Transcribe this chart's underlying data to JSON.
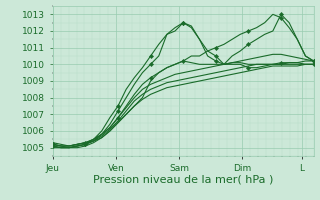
{
  "background_color": "#cce8d8",
  "plot_bg_color": "#cce8d8",
  "grid_major_color": "#99ccb0",
  "grid_minor_color": "#b8ddc8",
  "line_color": "#1a6b2a",
  "ylim": [
    1004.5,
    1013.5
  ],
  "yticks": [
    1005,
    1006,
    1007,
    1008,
    1009,
    1010,
    1011,
    1012,
    1013
  ],
  "xlabel": "Pression niveau de la mer( hPa )",
  "xlabel_fontsize": 8,
  "tick_fontsize": 6.5,
  "day_labels": [
    "Jeu",
    "Ven",
    "Sam",
    "Dim",
    "L"
  ],
  "day_positions": [
    0,
    32,
    64,
    96,
    126
  ],
  "xlim": [
    0,
    132
  ],
  "series": [
    {
      "y": [
        1005.2,
        1005.1,
        1005.1,
        1005.2,
        1005.3,
        1005.4,
        1005.6,
        1006.0,
        1006.5,
        1007.0,
        1007.5,
        1008.0,
        1009.0,
        1009.5,
        1009.8,
        1010.0,
        1010.2,
        1010.1,
        1010.0,
        1010.0,
        1010.0,
        1010.0,
        1010.1,
        1010.1,
        1010.0,
        1010.0,
        1010.0,
        1010.0,
        1010.0,
        1010.1,
        1010.1,
        1010.2,
        1010.2
      ],
      "markers": false
    },
    {
      "y": [
        1005.2,
        1005.1,
        1005.0,
        1005.1,
        1005.2,
        1005.4,
        1005.8,
        1006.4,
        1007.2,
        1008.0,
        1008.8,
        1009.5,
        1010.0,
        1010.5,
        1011.8,
        1012.2,
        1012.5,
        1012.3,
        1011.5,
        1010.8,
        1010.5,
        1010.0,
        1010.0,
        1010.0,
        1009.8,
        1009.8,
        1009.9,
        1010.0,
        1010.1,
        1010.1,
        1010.1,
        1010.0,
        1010.0
      ],
      "markers": true
    },
    {
      "y": [
        1005.1,
        1005.0,
        1005.0,
        1005.1,
        1005.2,
        1005.5,
        1006.0,
        1006.8,
        1007.5,
        1008.5,
        1009.2,
        1009.8,
        1010.5,
        1011.2,
        1011.8,
        1012.0,
        1012.5,
        1012.2,
        1011.5,
        1010.5,
        1010.2,
        1010.0,
        1010.5,
        1010.8,
        1011.2,
        1011.5,
        1011.8,
        1012.0,
        1013.0,
        1012.5,
        1011.5,
        1010.5,
        1010.2
      ],
      "markers": true
    },
    {
      "y": [
        1005.2,
        1005.1,
        1005.1,
        1005.2,
        1005.3,
        1005.5,
        1005.8,
        1006.2,
        1006.8,
        1007.5,
        1008.2,
        1008.8,
        1009.2,
        1009.5,
        1009.8,
        1010.0,
        1010.2,
        1010.5,
        1010.5,
        1010.8,
        1011.0,
        1011.2,
        1011.5,
        1011.8,
        1012.0,
        1012.2,
        1012.5,
        1013.0,
        1012.8,
        1012.2,
        1011.5,
        1010.5,
        1010.2
      ],
      "markers": true
    },
    {
      "y": [
        1005.3,
        1005.2,
        1005.1,
        1005.2,
        1005.3,
        1005.5,
        1005.8,
        1006.2,
        1006.8,
        1007.4,
        1008.0,
        1008.5,
        1008.8,
        1009.0,
        1009.2,
        1009.4,
        1009.5,
        1009.6,
        1009.7,
        1009.8,
        1009.9,
        1010.0,
        1010.1,
        1010.2,
        1010.3,
        1010.4,
        1010.5,
        1010.6,
        1010.6,
        1010.5,
        1010.4,
        1010.3,
        1010.2
      ],
      "markers": false
    },
    {
      "y": [
        1005.1,
        1005.0,
        1005.0,
        1005.1,
        1005.2,
        1005.4,
        1005.7,
        1006.1,
        1006.6,
        1007.2,
        1007.8,
        1008.2,
        1008.5,
        1008.7,
        1008.9,
        1009.0,
        1009.1,
        1009.2,
        1009.3,
        1009.4,
        1009.5,
        1009.6,
        1009.7,
        1009.8,
        1009.9,
        1010.0,
        1010.0,
        1010.0,
        1010.0,
        1010.0,
        1010.0,
        1010.0,
        1010.0
      ],
      "markers": false
    },
    {
      "y": [
        1005.0,
        1005.0,
        1005.0,
        1005.0,
        1005.1,
        1005.3,
        1005.6,
        1006.0,
        1006.5,
        1007.0,
        1007.5,
        1007.9,
        1008.2,
        1008.4,
        1008.6,
        1008.7,
        1008.8,
        1008.9,
        1009.0,
        1009.1,
        1009.2,
        1009.3,
        1009.4,
        1009.5,
        1009.6,
        1009.7,
        1009.8,
        1009.9,
        1009.9,
        1009.9,
        1009.9,
        1010.0,
        1010.0
      ],
      "markers": false
    }
  ]
}
